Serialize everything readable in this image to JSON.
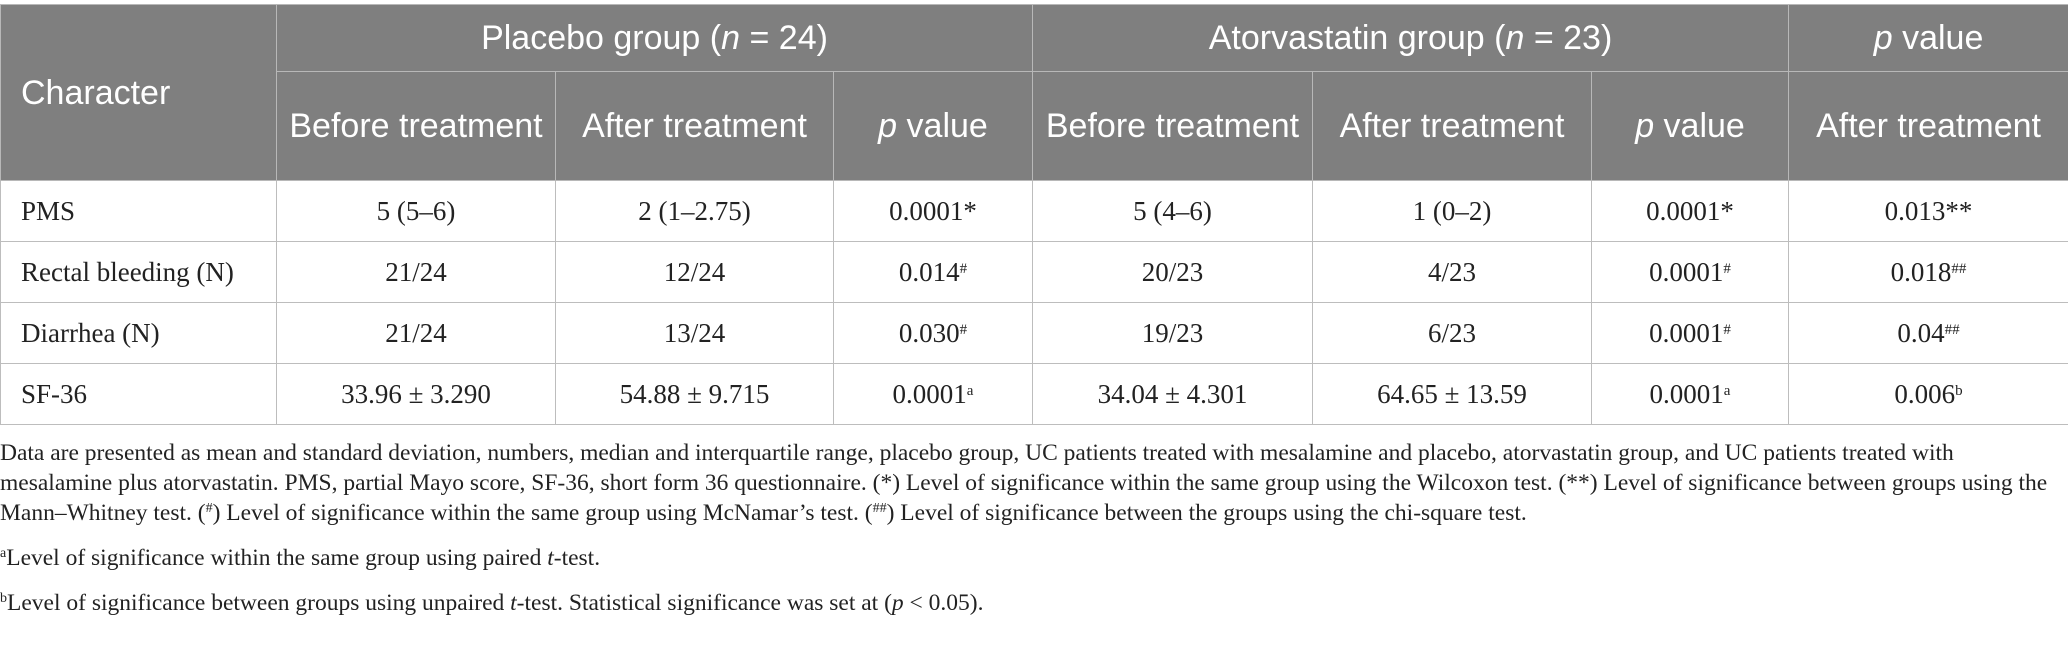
{
  "table": {
    "header": {
      "character": "Character",
      "group1": {
        "label": "Placebo group (",
        "n_var": "n",
        "n_value": " = 24)"
      },
      "group2": {
        "label": "Atorvastatin group (",
        "n_var": "n",
        "n_value": " = 23)"
      },
      "pvalue_var": "p",
      "pvalue_word": " value",
      "before": "Before treatment",
      "after": "After treatment"
    },
    "rows": [
      {
        "label": "PMS",
        "cells": [
          {
            "v": "5 (5–6)",
            "s": ""
          },
          {
            "v": "2 (1–2.75)",
            "s": ""
          },
          {
            "v": "0.0001*",
            "s": ""
          },
          {
            "v": "5 (4–6)",
            "s": ""
          },
          {
            "v": "1 (0–2)",
            "s": ""
          },
          {
            "v": "0.0001*",
            "s": ""
          },
          {
            "v": "0.013**",
            "s": ""
          }
        ]
      },
      {
        "label": "Rectal bleeding (N)",
        "cells": [
          {
            "v": "21/24",
            "s": ""
          },
          {
            "v": "12/24",
            "s": ""
          },
          {
            "v": "0.014",
            "s": "#"
          },
          {
            "v": "20/23",
            "s": ""
          },
          {
            "v": "4/23",
            "s": ""
          },
          {
            "v": "0.0001",
            "s": "#"
          },
          {
            "v": "0.018",
            "s": "##"
          }
        ]
      },
      {
        "label": "Diarrhea (N)",
        "cells": [
          {
            "v": "21/24",
            "s": ""
          },
          {
            "v": "13/24",
            "s": ""
          },
          {
            "v": "0.030",
            "s": "#"
          },
          {
            "v": "19/23",
            "s": ""
          },
          {
            "v": "6/23",
            "s": ""
          },
          {
            "v": "0.0001",
            "s": "#"
          },
          {
            "v": "0.04",
            "s": "##"
          }
        ]
      },
      {
        "label": "SF-36",
        "cells": [
          {
            "v": "33.96 ± 3.290",
            "s": ""
          },
          {
            "v": "54.88 ± 9.715",
            "s": ""
          },
          {
            "v": "0.0001",
            "s": "a"
          },
          {
            "v": "34.04 ± 4.301",
            "s": ""
          },
          {
            "v": "64.65 ± 13.59",
            "s": ""
          },
          {
            "v": "0.0001",
            "s": "a"
          },
          {
            "v": "0.006",
            "s": "b"
          }
        ]
      }
    ]
  },
  "notes": {
    "main": {
      "t1": "Data are presented as mean and standard deviation, numbers, median and interquartile range, placebo group, UC patients treated with mesalamine and placebo, atorvastatin group, and UC patients treated with mesalamine plus atorvastatin. PMS, partial Mayo score, SF-36, short form 36 questionnaire. (*) Level of significance within the same group using the Wilcoxon test. (**) Level of significance between groups using the Mann–Whitney test. (",
      "s1": "#",
      "t2": ") Level of significance within the same group using McNamar’s test. (",
      "s2": "##",
      "t3": ") Level of significance between the groups using the chi-square test."
    },
    "note_a": {
      "mark": "a",
      "pre": "Level of significance within the same group using paired ",
      "var": "t",
      "post": "-test."
    },
    "note_b": {
      "mark": "b",
      "pre": "Level of significance between groups using unpaired ",
      "var": "t",
      "post": "-test. Statistical significance was set at (",
      "var2": "p",
      "post2": " < 0.05)."
    }
  }
}
